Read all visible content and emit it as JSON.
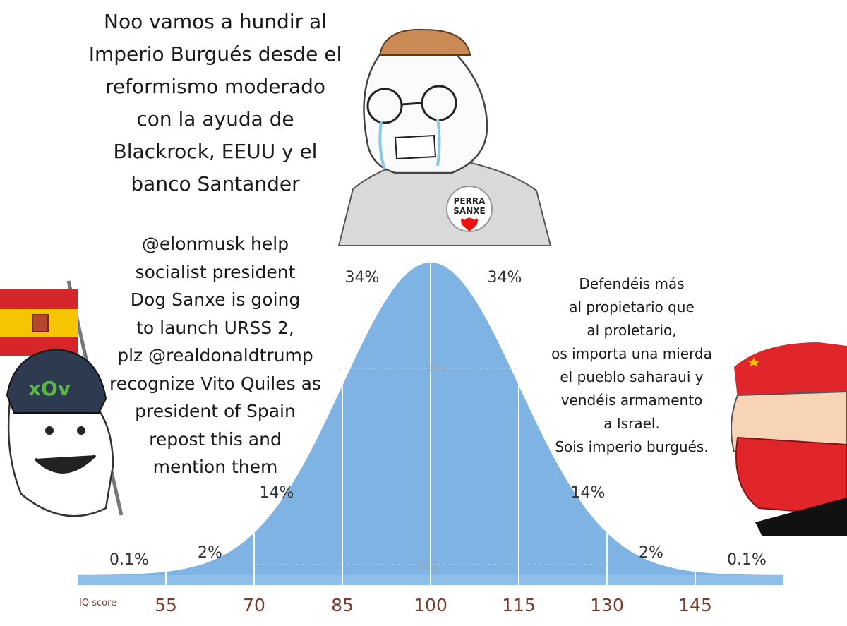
{
  "meme": {
    "top_caption_lines": [
      "Noo vamos a hundir al",
      "Imperio Burgués desde el",
      "reformismo moderado",
      "con la ayuda de",
      "Blackrock, EEUU y el",
      "banco Santander"
    ],
    "left_caption_lines": [
      "@elonmusk help",
      "socialist president",
      "Dog Sanxe is going",
      "to launch URSS 2,",
      "plz @realdonaldtrump",
      "recognize Vito Quiles as",
      "president of Spain",
      "repost this and",
      "mention them"
    ],
    "right_caption_lines": [
      "Defendéis más",
      "al propietario que",
      "al proletario,",
      "os importa una mierda",
      "el pueblo saharaui y",
      "vendéis armamento",
      "a Israel.",
      "Sois imperio burgués."
    ],
    "badge_text": [
      "PERRA",
      "SANXE"
    ],
    "cap_text": "xOv"
  },
  "chart_data": {
    "type": "area",
    "xlabel": "IQ score",
    "x_ticks": [
      55,
      70,
      85,
      100,
      115,
      130,
      145
    ],
    "region_labels": [
      "0.1%",
      "2%",
      "14%",
      "34%",
      "34%",
      "14%",
      "2%",
      "0.1%"
    ],
    "bands": [
      {
        "label": "68%",
        "from": 85,
        "to": 115
      },
      {
        "label": "95%",
        "from": 70,
        "to": 130
      }
    ],
    "mean": 100,
    "sd": 15,
    "fill_color": "#7fb3e3",
    "divider_color": "#ffffff"
  }
}
